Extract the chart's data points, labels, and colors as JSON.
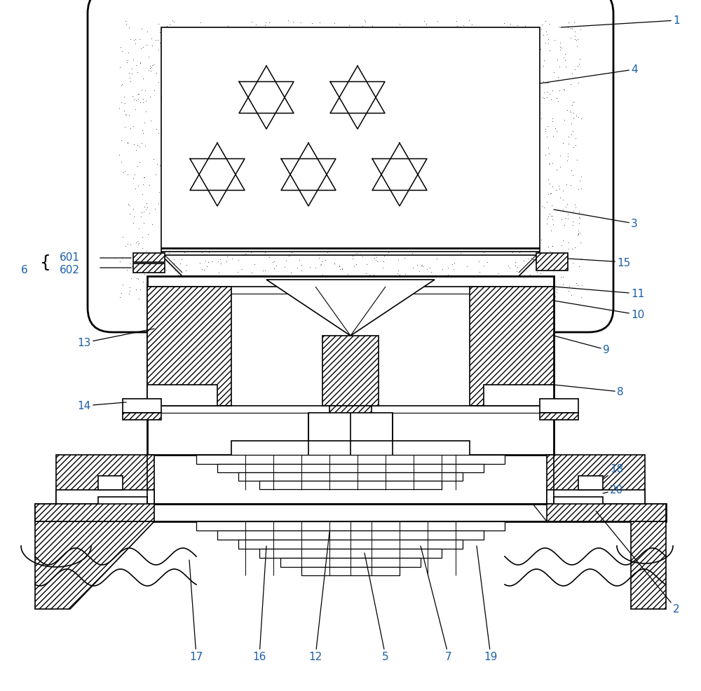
{
  "bg_color": "#ffffff",
  "line_color": "#000000",
  "label_color": "#1a5fa8",
  "fig_width": 10.0,
  "fig_height": 9.87,
  "lw": 1.2,
  "lw2": 2.0
}
